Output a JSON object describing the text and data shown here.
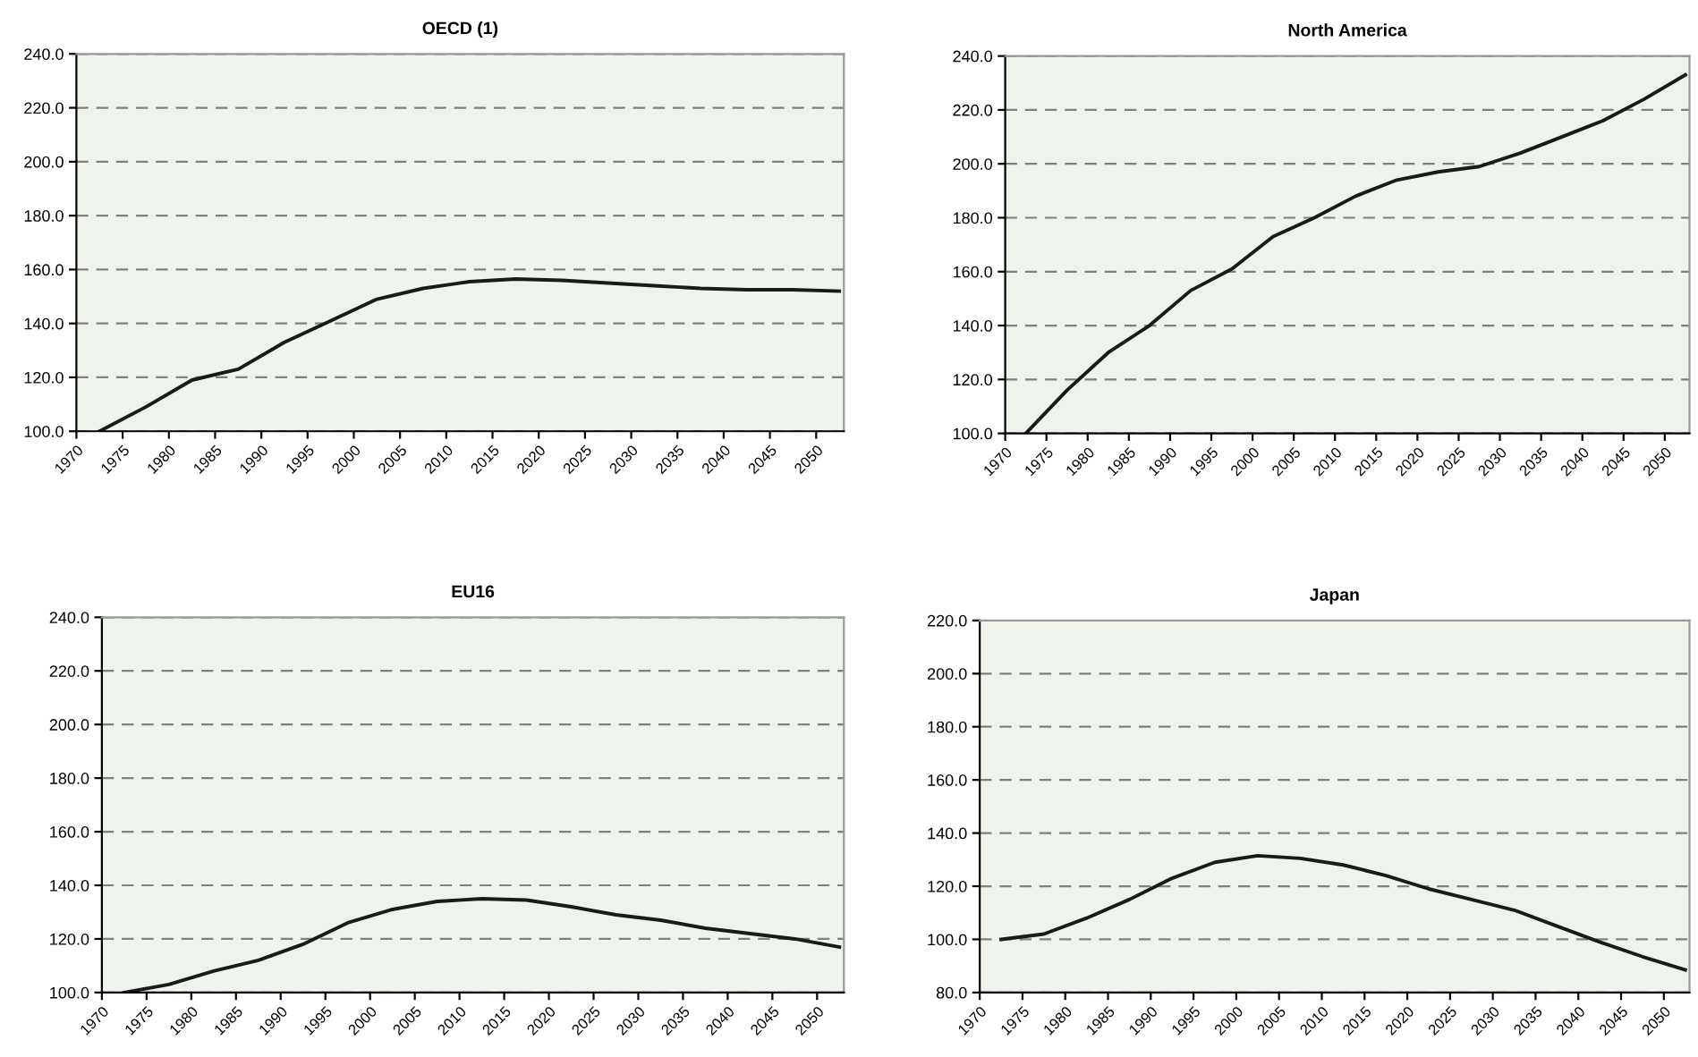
{
  "chart_data": [
    {
      "type": "line",
      "title": "OECD (1)",
      "x": [
        1972.5,
        1977.5,
        1982.5,
        1987.5,
        1992.5,
        1997.5,
        2002.5,
        2007.5,
        2012.5,
        2017.5,
        2022.5,
        2027.5,
        2032.5,
        2037.5,
        2042.5,
        2047.5,
        2052.5
      ],
      "series": [
        {
          "color": "#1a1a1a",
          "values": [
            100,
            109,
            119,
            123,
            133,
            141,
            149,
            153,
            155.5,
            156.5,
            156,
            155,
            154,
            153,
            152.5,
            152.5,
            152
          ]
        }
      ],
      "xlim": [
        1970,
        2053
      ],
      "xticks": [
        1970,
        1975,
        1980,
        1985,
        1990,
        1995,
        2000,
        2005,
        2010,
        2015,
        2020,
        2025,
        2030,
        2035,
        2040,
        2045,
        2050
      ],
      "ylim": [
        100,
        240
      ],
      "yticks": [
        {
          "value": 100,
          "label": "100.0"
        },
        {
          "value": 120,
          "label": "120.0"
        },
        {
          "value": 140,
          "label": "140.0"
        },
        {
          "value": 160,
          "label": "160.0"
        },
        {
          "value": 180,
          "label": "180.0"
        },
        {
          "value": 200,
          "label": "200.0"
        },
        {
          "value": 220,
          "label": "220.0"
        },
        {
          "value": 240,
          "label": "240.0"
        }
      ],
      "grid": "y",
      "marker": "none",
      "line_style": "solid",
      "legend": false
    },
    {
      "type": "line",
      "title": "North America",
      "x": [
        1972.5,
        1977.5,
        1982.5,
        1987.5,
        1992.5,
        1997.5,
        2002.5,
        2007.5,
        2012.5,
        2017.5,
        2022.5,
        2027.5,
        2032.5,
        2037.5,
        2042.5,
        2047.5,
        2052.5
      ],
      "series": [
        {
          "color": "#1a1a1a",
          "values": [
            100,
            116,
            130,
            140,
            153,
            161,
            173,
            180,
            188,
            194,
            197,
            199,
            204,
            210,
            216,
            224,
            233
          ]
        }
      ],
      "xlim": [
        1970,
        2053
      ],
      "xticks": [
        1970,
        1975,
        1980,
        1985,
        1990,
        1995,
        2000,
        2005,
        2010,
        2015,
        2020,
        2025,
        2030,
        2035,
        2040,
        2045,
        2050
      ],
      "ylim": [
        100,
        240
      ],
      "yticks": [
        {
          "value": 100,
          "label": "100.0"
        },
        {
          "value": 120,
          "label": "120.0"
        },
        {
          "value": 140,
          "label": "140.0"
        },
        {
          "value": 160,
          "label": "160.0"
        },
        {
          "value": 180,
          "label": "180.0"
        },
        {
          "value": 200,
          "label": "200.0"
        },
        {
          "value": 220,
          "label": "220.0"
        },
        {
          "value": 240,
          "label": "240.0"
        }
      ],
      "grid": "y",
      "marker": "none",
      "line_style": "solid",
      "legend": false
    },
    {
      "type": "line",
      "title": "EU16",
      "x": [
        1972.5,
        1977.5,
        1982.5,
        1987.5,
        1992.5,
        1997.5,
        2002.5,
        2007.5,
        2012.5,
        2017.5,
        2022.5,
        2027.5,
        2032.5,
        2037.5,
        2042.5,
        2047.5,
        2052.5
      ],
      "series": [
        {
          "color": "#1a1a1a",
          "values": [
            100,
            103,
            108,
            112,
            118,
            126,
            131,
            134,
            135,
            134.5,
            132,
            129,
            127,
            124,
            122,
            120,
            117
          ]
        }
      ],
      "xlim": [
        1970,
        2053
      ],
      "xticks": [
        1970,
        1975,
        1980,
        1985,
        1990,
        1995,
        2000,
        2005,
        2010,
        2015,
        2020,
        2025,
        2030,
        2035,
        2040,
        2045,
        2050
      ],
      "ylim": [
        100,
        240
      ],
      "yticks": [
        {
          "value": 100,
          "label": "100.0"
        },
        {
          "value": 120,
          "label": "120.0"
        },
        {
          "value": 140,
          "label": "140.0"
        },
        {
          "value": 160,
          "label": "160.0"
        },
        {
          "value": 180,
          "label": "180.0"
        },
        {
          "value": 200,
          "label": "200.0"
        },
        {
          "value": 220,
          "label": "220.0"
        },
        {
          "value": 240,
          "label": "240.0"
        }
      ],
      "grid": "y",
      "marker": "none",
      "line_style": "solid",
      "legend": false
    },
    {
      "type": "line",
      "title": "Japan",
      "x": [
        1972.5,
        1977.5,
        1982.5,
        1987.5,
        1992.5,
        1997.5,
        2002.5,
        2007.5,
        2012.5,
        2017.5,
        2022.5,
        2027.5,
        2032.5,
        2037.5,
        2042.5,
        2047.5,
        2052.5
      ],
      "series": [
        {
          "color": "#1a1a1a",
          "values": [
            100,
            102,
            108,
            115,
            123,
            129,
            131.5,
            130.5,
            128,
            124,
            119,
            115,
            111,
            105,
            99,
            93.5,
            88.5
          ]
        }
      ],
      "xlim": [
        1970,
        2053
      ],
      "xticks": [
        1970,
        1975,
        1980,
        1985,
        1990,
        1995,
        2000,
        2005,
        2010,
        2015,
        2020,
        2025,
        2030,
        2035,
        2040,
        2045,
        2050
      ],
      "ylim": [
        80,
        220
      ],
      "yticks": [
        {
          "value": 80,
          "label": "80.0"
        },
        {
          "value": 100,
          "label": "100.0"
        },
        {
          "value": 120,
          "label": "120.0"
        },
        {
          "value": 140,
          "label": "140.0"
        },
        {
          "value": 160,
          "label": "160.0"
        },
        {
          "value": 180,
          "label": "180.0"
        },
        {
          "value": 200,
          "label": "200.0"
        },
        {
          "value": 220,
          "label": "220.0"
        }
      ],
      "grid": "y",
      "marker": "none",
      "line_style": "solid",
      "legend": false
    }
  ]
}
